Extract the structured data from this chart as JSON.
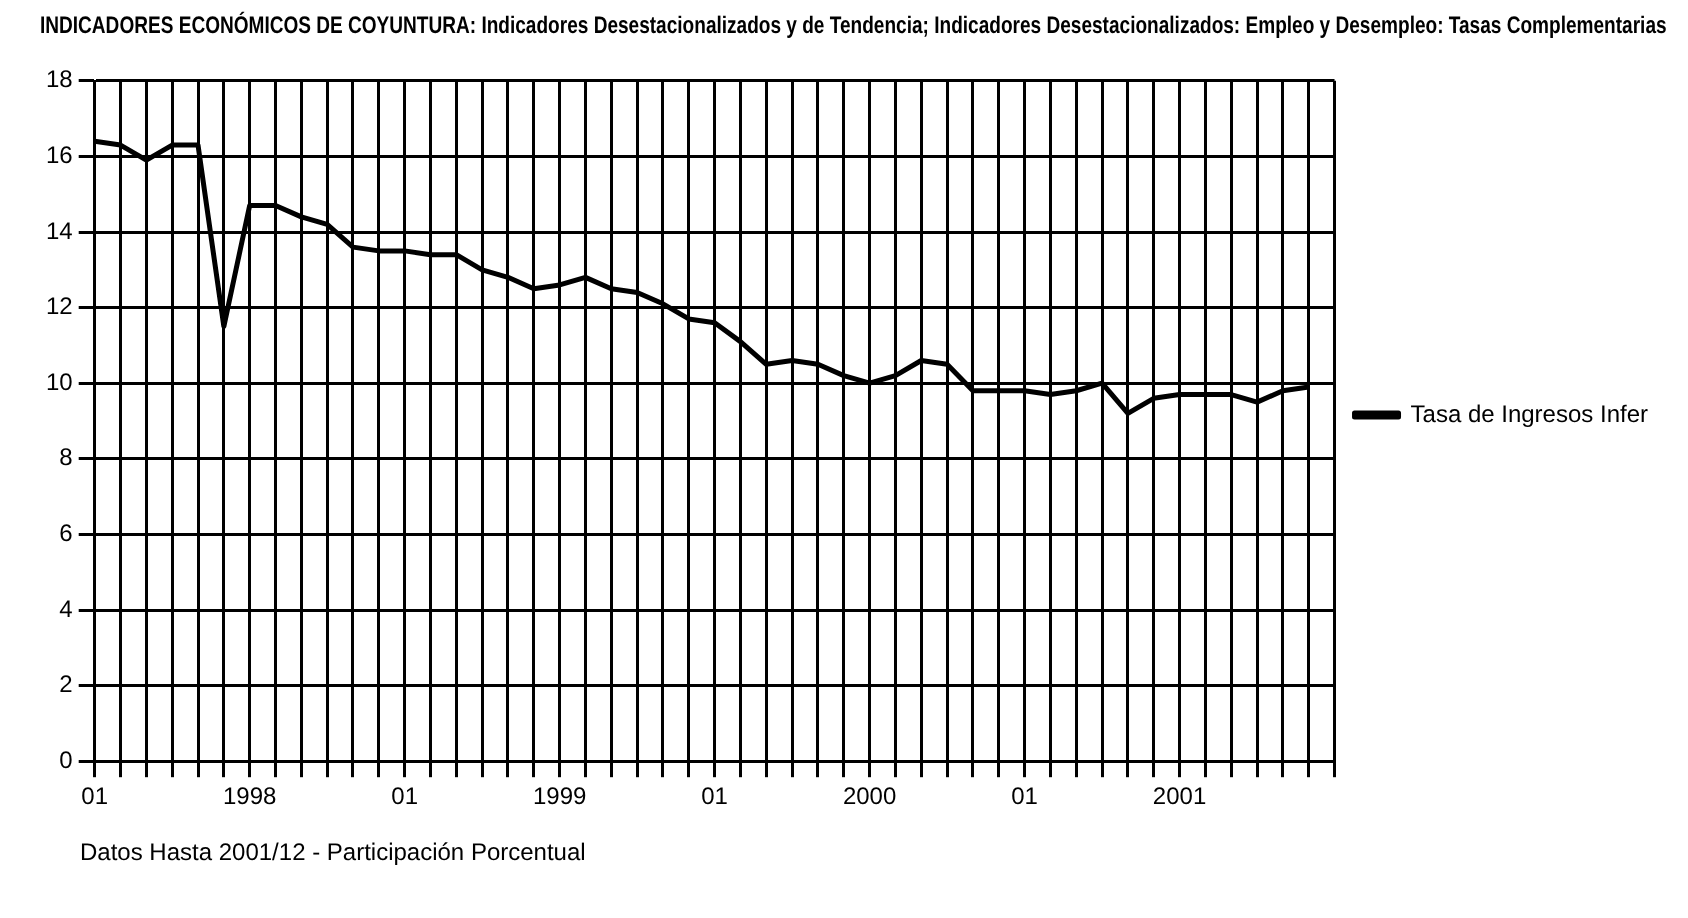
{
  "chart_data": {
    "type": "line",
    "title": "INDICADORES ECONÓMICOS DE COYUNTURA: Indicadores Desestacionalizados y de Tendencia; Indicadores Desestacionalizados: Empleo y Desempleo: Tasas Complementarias",
    "x": [
      "1998-01",
      "1998-02",
      "1998-03",
      "1998-04",
      "1998-05",
      "1998-06",
      "1998-07",
      "1998-08",
      "1998-09",
      "1998-10",
      "1998-11",
      "1998-12",
      "1999-01",
      "1999-02",
      "1999-03",
      "1999-04",
      "1999-05",
      "1999-06",
      "1999-07",
      "1999-08",
      "1999-09",
      "1999-10",
      "1999-11",
      "1999-12",
      "2000-01",
      "2000-02",
      "2000-03",
      "2000-04",
      "2000-05",
      "2000-06",
      "2000-07",
      "2000-08",
      "2000-09",
      "2000-10",
      "2000-11",
      "2000-12",
      "2001-01",
      "2001-02",
      "2001-03",
      "2001-04",
      "2001-05",
      "2001-06",
      "2001-07",
      "2001-08",
      "2001-09",
      "2001-10",
      "2001-11",
      "2001-12"
    ],
    "series": [
      {
        "name": "Tasa de Ingresos Infer",
        "color": "#000000",
        "values": [
          16.4,
          16.3,
          15.9,
          16.3,
          16.3,
          11.5,
          14.7,
          14.7,
          14.4,
          14.2,
          13.6,
          13.5,
          13.5,
          13.4,
          13.4,
          13.0,
          12.8,
          12.5,
          12.6,
          12.8,
          12.5,
          12.4,
          12.1,
          11.7,
          11.6,
          11.1,
          10.5,
          10.6,
          10.5,
          10.2,
          10.0,
          10.2,
          10.6,
          10.5,
          9.8,
          9.8,
          9.8,
          9.7,
          9.8,
          10.0,
          9.2,
          9.6,
          9.7,
          9.7,
          9.7,
          9.5,
          9.8,
          9.9
        ]
      }
    ],
    "xlim": [
      "1998-01",
      "2002-01"
    ],
    "xticks": [
      {
        "value": "1998-01",
        "label": "01"
      },
      {
        "value": "1998-02",
        "label": null
      },
      {
        "value": "1998-03",
        "label": null
      },
      {
        "value": "1998-04",
        "label": null
      },
      {
        "value": "1998-05",
        "label": null
      },
      {
        "value": "1998-06",
        "label": null
      },
      {
        "value": "1998-07",
        "label": "1998"
      },
      {
        "value": "1998-08",
        "label": null
      },
      {
        "value": "1998-09",
        "label": null
      },
      {
        "value": "1998-10",
        "label": null
      },
      {
        "value": "1998-11",
        "label": null
      },
      {
        "value": "1998-12",
        "label": null
      },
      {
        "value": "1999-01",
        "label": "01"
      },
      {
        "value": "1999-02",
        "label": null
      },
      {
        "value": "1999-03",
        "label": null
      },
      {
        "value": "1999-04",
        "label": null
      },
      {
        "value": "1999-05",
        "label": null
      },
      {
        "value": "1999-06",
        "label": null
      },
      {
        "value": "1999-07",
        "label": "1999"
      },
      {
        "value": "1999-08",
        "label": null
      },
      {
        "value": "1999-09",
        "label": null
      },
      {
        "value": "1999-10",
        "label": null
      },
      {
        "value": "1999-11",
        "label": null
      },
      {
        "value": "1999-12",
        "label": null
      },
      {
        "value": "2000-01",
        "label": "01"
      },
      {
        "value": "2000-02",
        "label": null
      },
      {
        "value": "2000-03",
        "label": null
      },
      {
        "value": "2000-04",
        "label": null
      },
      {
        "value": "2000-05",
        "label": null
      },
      {
        "value": "2000-06",
        "label": null
      },
      {
        "value": "2000-07",
        "label": "2000"
      },
      {
        "value": "2000-08",
        "label": null
      },
      {
        "value": "2000-09",
        "label": null
      },
      {
        "value": "2000-10",
        "label": null
      },
      {
        "value": "2000-11",
        "label": null
      },
      {
        "value": "2000-12",
        "label": null
      },
      {
        "value": "2001-01",
        "label": "01"
      },
      {
        "value": "2001-02",
        "label": null
      },
      {
        "value": "2001-03",
        "label": null
      },
      {
        "value": "2001-04",
        "label": null
      },
      {
        "value": "2001-05",
        "label": null
      },
      {
        "value": "2001-06",
        "label": null
      },
      {
        "value": "2001-07",
        "label": "2001"
      },
      {
        "value": "2001-08",
        "label": null
      },
      {
        "value": "2001-09",
        "label": null
      },
      {
        "value": "2001-10",
        "label": null
      },
      {
        "value": "2001-11",
        "label": null
      },
      {
        "value": "2001-12",
        "label": null
      },
      {
        "value": "2002-01",
        "label": null
      }
    ],
    "ylim": [
      0,
      18
    ],
    "yticks": [
      0,
      2,
      4,
      6,
      8,
      10,
      12,
      14,
      16,
      18
    ],
    "grid": true,
    "legend": "right",
    "marker": "none",
    "line_style": "solid",
    "annotations": [
      "Datos Hasta 2001/12 - Participación Porcentual"
    ]
  }
}
